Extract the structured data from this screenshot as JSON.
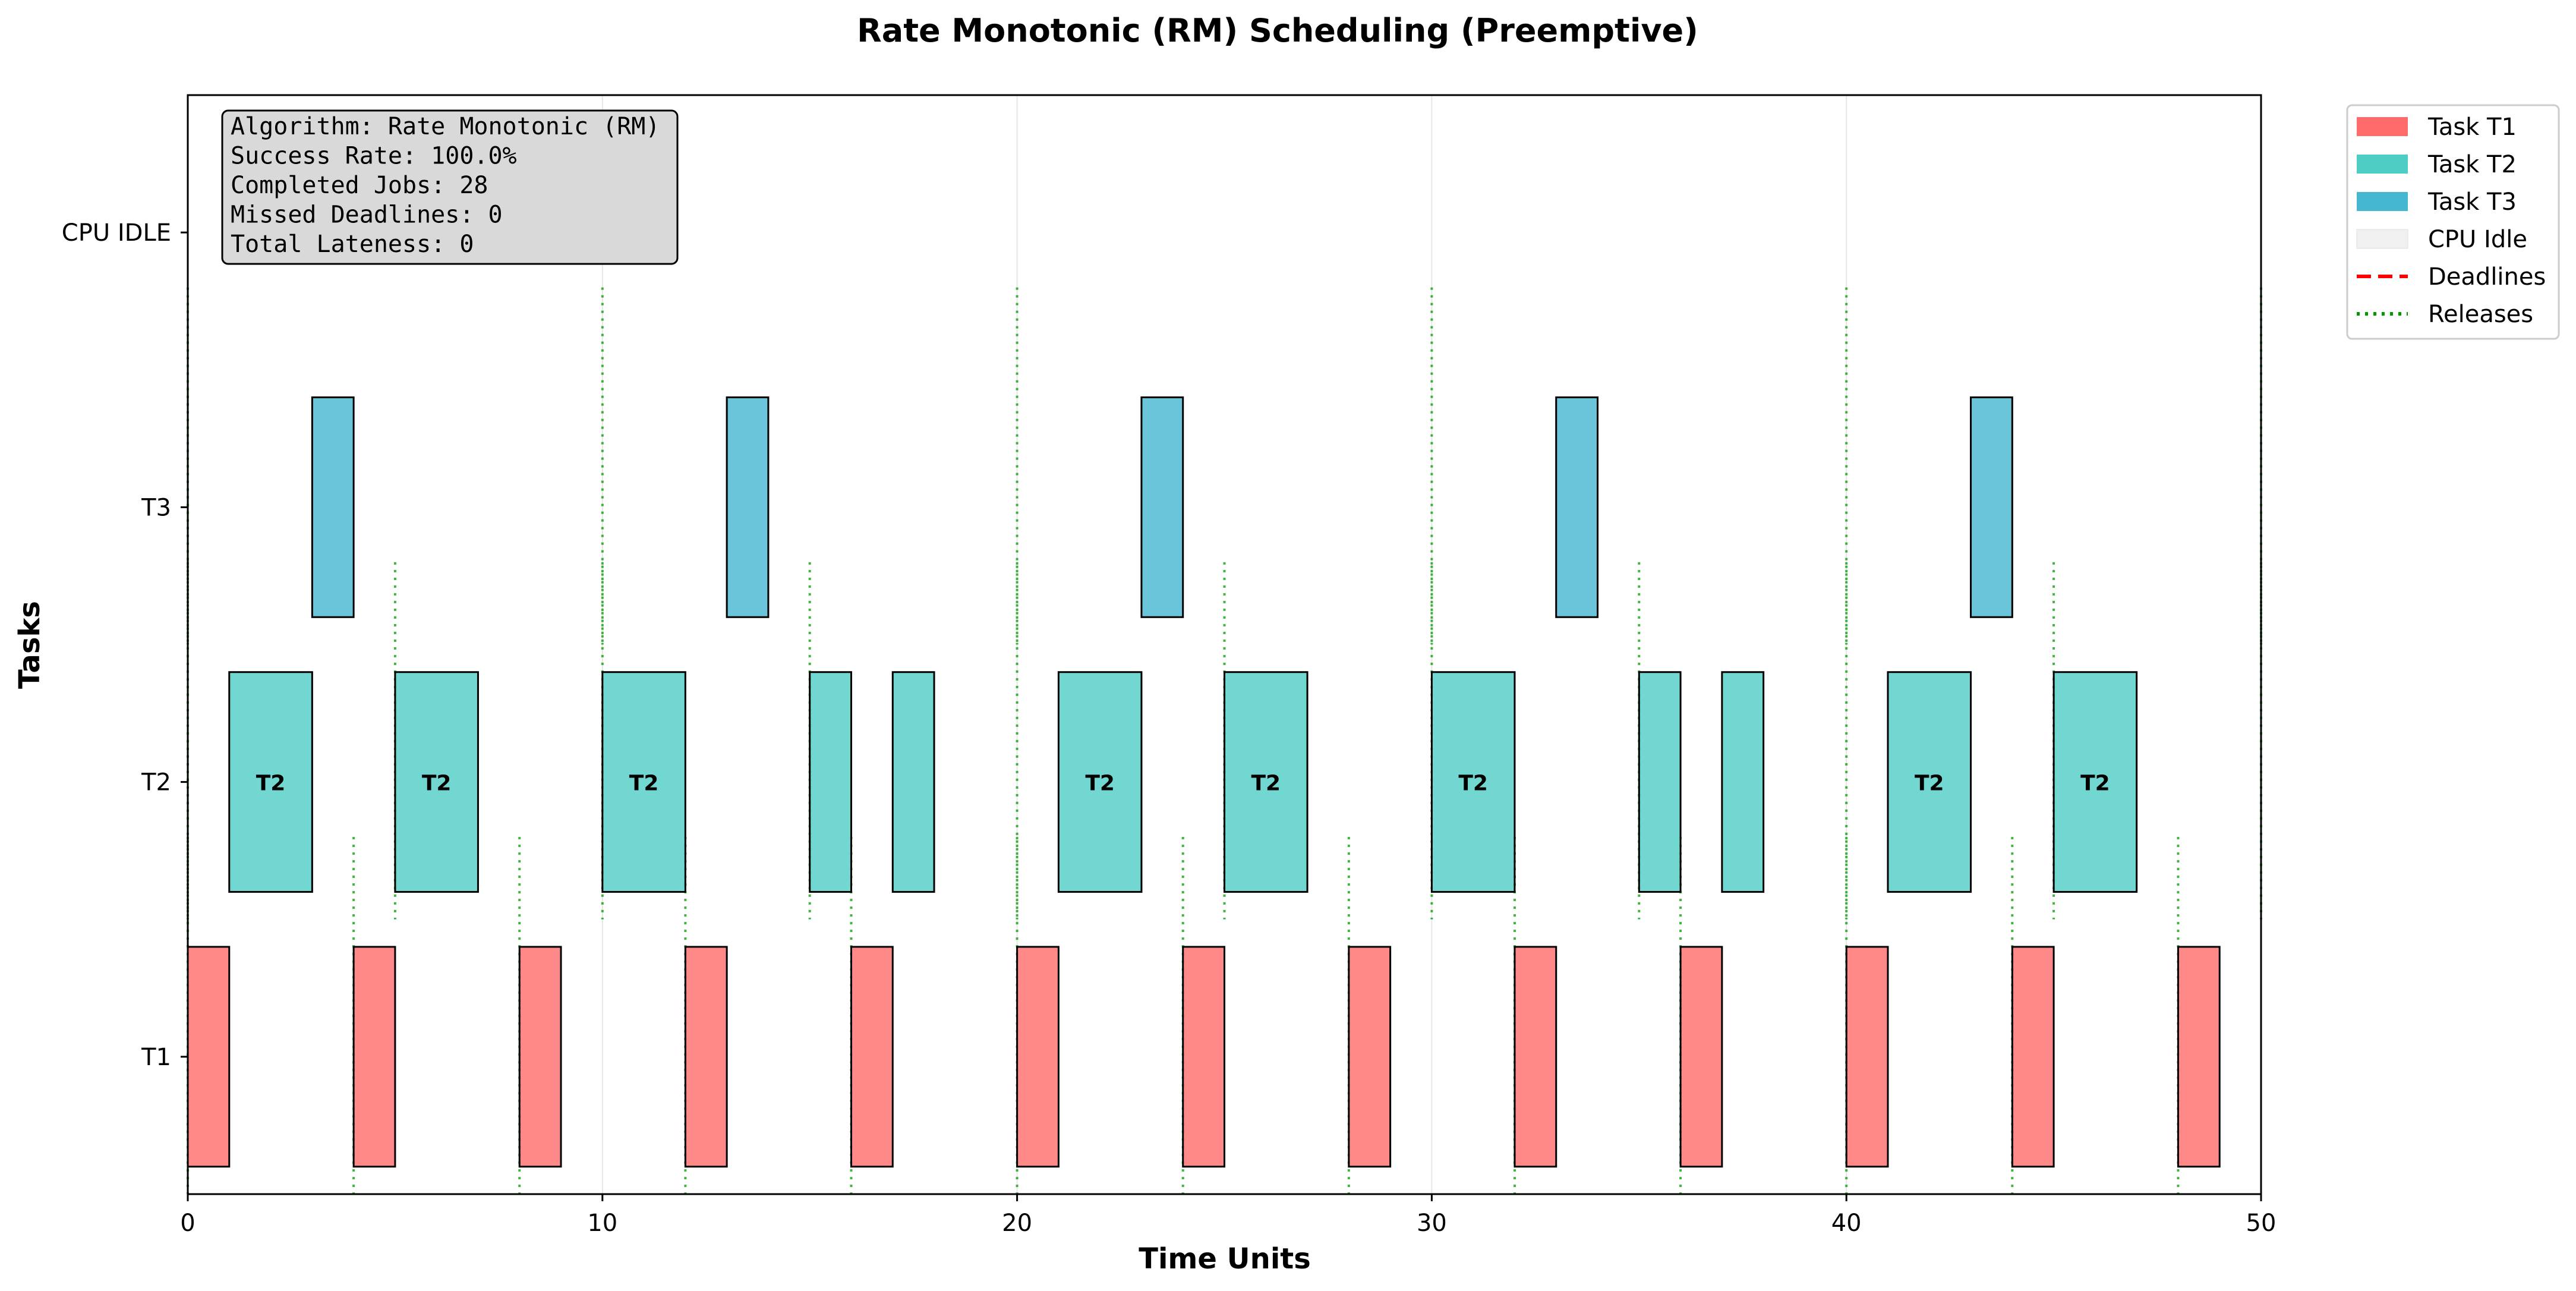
{
  "chart_data": {
    "type": "gantt",
    "title": "Rate Monotonic (RM) Scheduling (Preemptive)",
    "xlabel": "Time Units",
    "ylabel": "Tasks",
    "xlim": [
      0,
      50
    ],
    "ylim": [
      -0.5,
      3.5
    ],
    "x_ticks": [
      0,
      10,
      20,
      30,
      40,
      50
    ],
    "y_ticks": [
      {
        "label": "T1",
        "value": 0
      },
      {
        "label": "T2",
        "value": 1
      },
      {
        "label": "T3",
        "value": 2
      },
      {
        "label": "CPU IDLE",
        "value": 3
      }
    ],
    "grid": "x",
    "colors": {
      "T1": "#ff6b6b",
      "T2": "#4ecdc4",
      "T3": "#45b7d1",
      "idle": "#f0f0f0",
      "deadline": "#ff0000",
      "release": "#009900"
    },
    "series": [
      {
        "task": "T1",
        "row": 0,
        "intervals": [
          [
            0,
            1
          ],
          [
            4,
            5
          ],
          [
            8,
            9
          ],
          [
            12,
            13
          ],
          [
            16,
            17
          ],
          [
            20,
            21
          ],
          [
            24,
            25
          ],
          [
            28,
            29
          ],
          [
            32,
            33
          ],
          [
            36,
            37
          ],
          [
            40,
            41
          ],
          [
            44,
            45
          ],
          [
            48,
            49
          ]
        ]
      },
      {
        "task": "T2",
        "row": 1,
        "intervals": [
          [
            1,
            3
          ],
          [
            5,
            7
          ],
          [
            10,
            12
          ],
          [
            15,
            16
          ],
          [
            17,
            18
          ],
          [
            21,
            23
          ],
          [
            25,
            27
          ],
          [
            30,
            32
          ],
          [
            35,
            36
          ],
          [
            37,
            38
          ],
          [
            41,
            43
          ],
          [
            45,
            47
          ]
        ]
      },
      {
        "task": "T3",
        "row": 2,
        "intervals": [
          [
            3,
            4
          ],
          [
            13,
            14
          ],
          [
            23,
            24
          ],
          [
            33,
            34
          ],
          [
            43,
            44
          ]
        ]
      }
    ],
    "bar_label_min_duration": 2,
    "releases": [
      {
        "row": 0,
        "times": [
          0,
          4,
          8,
          12,
          16,
          20,
          24,
          28,
          32,
          36,
          40,
          44,
          48
        ]
      },
      {
        "row": 1,
        "times": [
          0,
          5,
          10,
          15,
          20,
          25,
          30,
          35,
          40,
          45,
          50
        ]
      },
      {
        "row": 2,
        "times": [
          0,
          10,
          20,
          30,
          40,
          50
        ]
      }
    ],
    "legend": {
      "placement": "outside-top-right",
      "entries": [
        {
          "label": "Task T1",
          "kind": "patch",
          "color": "#ff6b6b"
        },
        {
          "label": "Task T2",
          "kind": "patch",
          "color": "#4ecdc4"
        },
        {
          "label": "Task T3",
          "kind": "patch",
          "color": "#45b7d1"
        },
        {
          "label": "CPU Idle",
          "kind": "patch",
          "color": "#f0f0f0"
        },
        {
          "label": "Deadlines",
          "kind": "dashed",
          "color": "#ff0000"
        },
        {
          "label": "Releases",
          "kind": "dotted",
          "color": "#009900"
        }
      ]
    },
    "stats_box": {
      "placement": "top-left",
      "lines": [
        "Algorithm: Rate Monotonic (RM)",
        "Success Rate: 100.0%",
        "Completed Jobs: 28",
        "Missed Deadlines: 0",
        "Total Lateness: 0"
      ]
    }
  }
}
